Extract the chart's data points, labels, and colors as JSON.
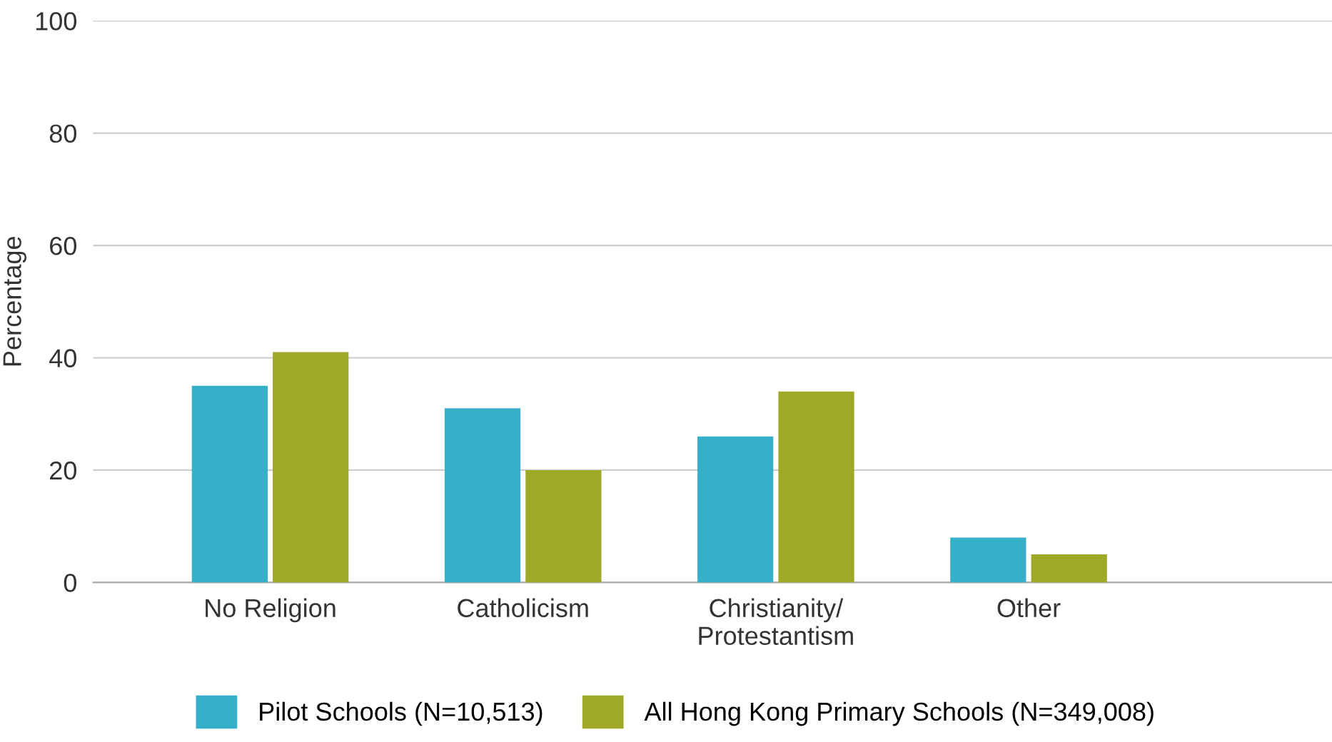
{
  "chart_data": {
    "type": "bar",
    "ylabel": "Percentage",
    "categories": [
      "No Religion",
      "Catholicism",
      "Christianity/\nProtestantism",
      "Other"
    ],
    "series": [
      {
        "name": "Pilot Schools (N=10,513)",
        "color": "#36b0c9",
        "values": [
          35,
          31,
          26,
          8
        ]
      },
      {
        "name": "All Hong Kong Primary Schools (N=349,008)",
        "color": "#a0a828",
        "values": [
          41,
          20,
          34,
          5
        ]
      }
    ],
    "ylim": [
      0,
      100
    ],
    "yticks": [
      0,
      20,
      40,
      60,
      80,
      100
    ],
    "grid": "y",
    "legend": "bottom"
  }
}
